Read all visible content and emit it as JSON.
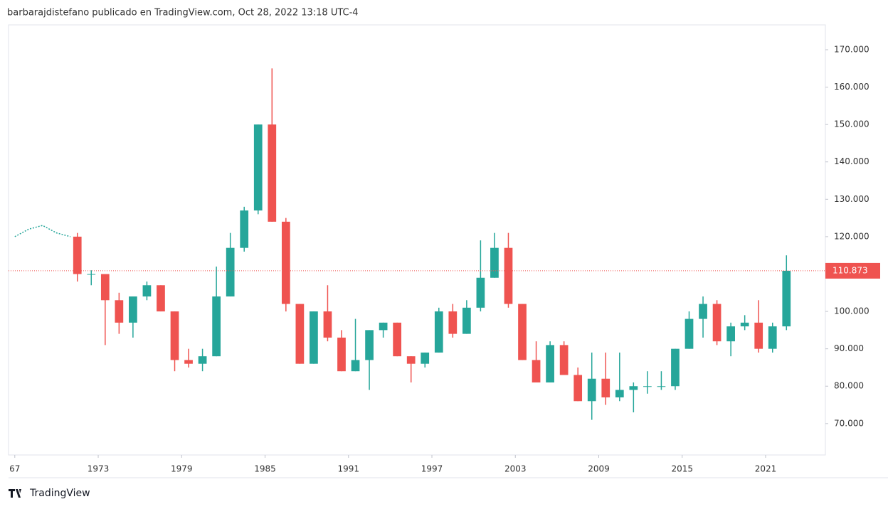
{
  "header": "barbarajdistefano publicado en TradingView.com, Oct 28, 2022 13:18 UTC-4",
  "footer": "TradingView",
  "chart_data": {
    "type": "candlestick",
    "x": [
      1971,
      1972,
      1973,
      1974,
      1975,
      1976,
      1977,
      1978,
      1979,
      1980,
      1981,
      1982,
      1983,
      1984,
      1985,
      1986,
      1987,
      1988,
      1989,
      1990,
      1991,
      1992,
      1993,
      1994,
      1995,
      1996,
      1997,
      1998,
      1999,
      2000,
      2001,
      2002,
      2003,
      2004,
      2005,
      2006,
      2007,
      2008,
      2009,
      2010,
      2011,
      2012,
      2013,
      2014,
      2015,
      2016,
      2017,
      2018,
      2019,
      2020,
      2021,
      2022
    ],
    "open": [
      120,
      110,
      110,
      103,
      97,
      104,
      107,
      100,
      87,
      86,
      88,
      104,
      117,
      127,
      150,
      124,
      102,
      86,
      100,
      93,
      84,
      87,
      95,
      97,
      88,
      86,
      89,
      100,
      94,
      101,
      109,
      117,
      102,
      87,
      81,
      91,
      83,
      76,
      82,
      77,
      79,
      80,
      80,
      80,
      90,
      98,
      102,
      92,
      96,
      97,
      90,
      96
    ],
    "high": [
      121,
      111,
      110,
      105,
      104,
      108,
      107,
      100,
      90,
      90,
      112,
      121,
      128,
      150,
      165,
      125,
      102,
      100,
      107,
      95,
      98,
      95,
      97,
      97,
      88,
      89,
      101,
      102,
      103,
      119,
      121,
      121,
      102,
      92,
      92,
      92,
      85,
      89,
      89,
      89,
      81,
      84,
      84,
      90,
      100,
      104,
      103,
      97,
      99,
      103,
      97,
      115
    ],
    "low": [
      108,
      107,
      91,
      94,
      93,
      103,
      100,
      84,
      85,
      84,
      88,
      104,
      116,
      126,
      124,
      100,
      86,
      86,
      92,
      84,
      84,
      79,
      93,
      88,
      81,
      85,
      89,
      93,
      94,
      100,
      109,
      101,
      87,
      81,
      81,
      83,
      76,
      71,
      75,
      76,
      73,
      78,
      79,
      79,
      90,
      93,
      91,
      88,
      95,
      89,
      89,
      95
    ],
    "close": [
      110,
      110,
      103,
      97,
      104,
      107,
      100,
      87,
      86,
      88,
      104,
      117,
      127,
      150,
      124,
      102,
      86,
      100,
      93,
      84,
      87,
      95,
      97,
      88,
      86,
      89,
      100,
      94,
      101,
      109,
      117,
      102,
      87,
      81,
      91,
      83,
      76,
      82,
      77,
      79,
      80,
      80,
      80,
      90,
      98,
      102,
      92,
      96,
      97,
      90,
      96,
      110.873
    ],
    "up_color": "#26a69a",
    "down_color": "#ef5350",
    "pre_x": [
      1967,
      1968,
      1969,
      1970,
      1971
    ],
    "pre_values": [
      120,
      122,
      123,
      121,
      120
    ],
    "pre_color": "#26a69a",
    "last_price": 110.873,
    "last_color": "#ef5350",
    "xlim": [
      1966.55,
      2025.3
    ],
    "xticks": [
      {
        "value": 1967,
        "label": "67"
      },
      1973,
      1979,
      1985,
      1991,
      1997,
      2003,
      2009,
      2015,
      2021
    ],
    "ylim": [
      61.6,
      176.65
    ],
    "yticks": [
      {
        "value": 70,
        "label": "70.000"
      },
      {
        "value": 80,
        "label": "80.000"
      },
      {
        "value": 90,
        "label": "90.000"
      },
      {
        "value": 100,
        "label": "100.000"
      },
      {
        "value": 110,
        "label": "110.000"
      },
      {
        "value": 120,
        "label": "120.000"
      },
      {
        "value": 130,
        "label": "130.000"
      },
      {
        "value": 140,
        "label": "140.000"
      },
      {
        "value": 150,
        "label": "150.000"
      },
      {
        "value": 160,
        "label": "160.000"
      },
      {
        "value": 170,
        "label": "170.000"
      }
    ]
  }
}
